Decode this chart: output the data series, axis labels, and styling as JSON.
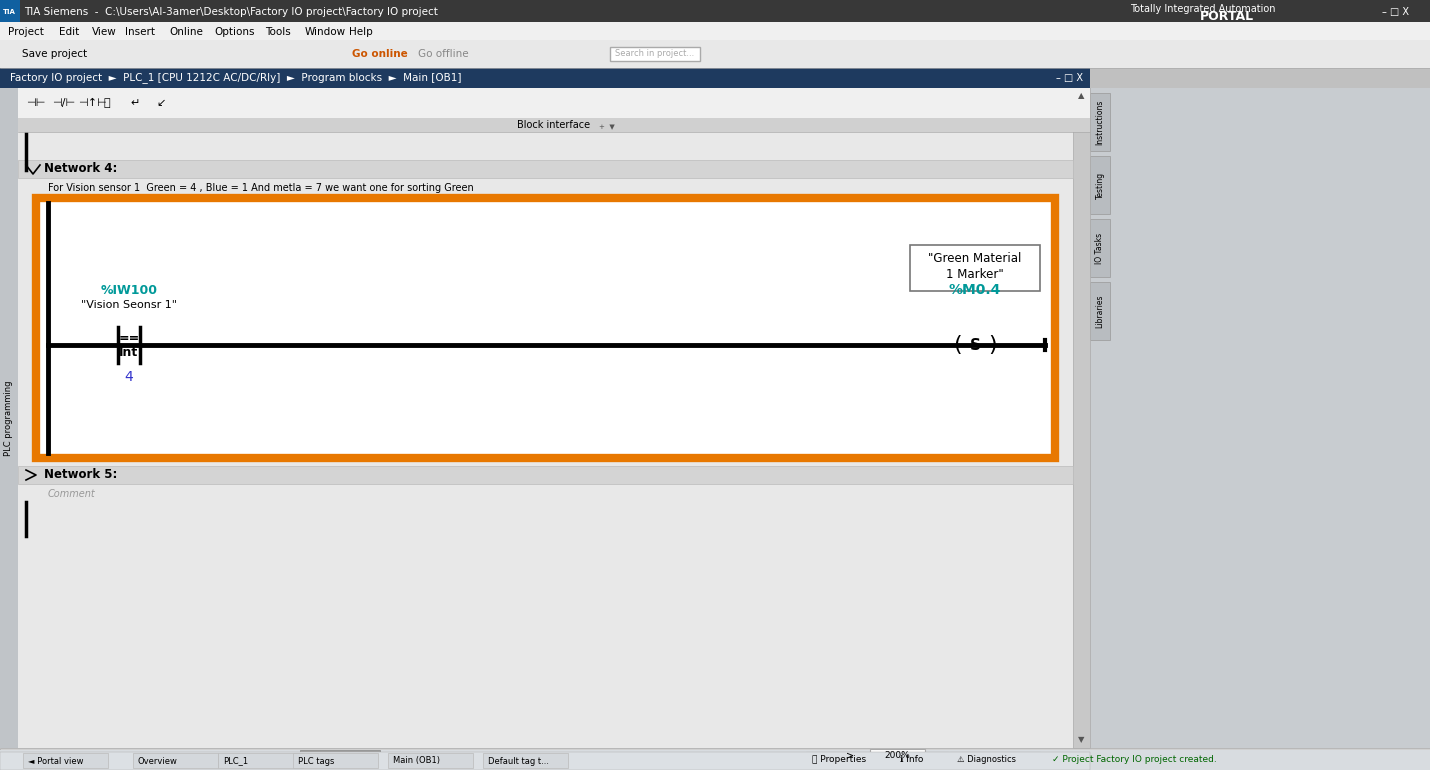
{
  "title_bar_text": "TIA Siemens  -  C:\\Users\\Al-3amer\\Desktop\\Factory IO project\\Factory IO project",
  "portal_line1": "Totally Integrated Automation",
  "portal_line2": "PORTAL",
  "breadcrumb": "Factory IO project  ►  PLC_1 [CPU 1212C AC/DC/Rly]  ►  Program blocks  ►  Main [OB1]",
  "block_interface": "Block interface",
  "network4_label": "Network 4:",
  "network4_comment": "For Vision sensor 1  Green = 4 , Blue = 1 And metla = 7 we want one for sorting Green",
  "network5_label": "Network 5:",
  "network5_comment": "Comment",
  "iw100": "%IW100",
  "iw100_tag": "\"Vision Seonsr 1\"",
  "eq_label": "==",
  "int_label": "Int",
  "val4": "4",
  "m04": "%M0.4",
  "m04_tag1": "\"Green Material",
  "m04_tag2": "1 Marker\"",
  "coil_s": "S",
  "go_online": "Go online",
  "go_offline": "Go offline",
  "save_project": "Save project",
  "search_ph": "Search in project...",
  "zoom_pct": "200%",
  "properties": "Properties",
  "info": "Info",
  "diagnostics": "Diagnostics",
  "proj_created": "Project Factory IO project created.",
  "portal_view": "Portal view",
  "overview": "Overview",
  "plc1": "PLC_1",
  "plc_tags": "PLC tags",
  "main_ob1": "Main (OB1)",
  "def_tag": "Default tag t...",
  "plc_programming": "PLC programming",
  "side_tabs": [
    "Instructions",
    "Testing",
    "IO Tasks",
    "Libraries"
  ],
  "c_title_bg": "#383838",
  "c_title_fg": "#ffffff",
  "c_menu_bg": "#f0f0f0",
  "c_menu_fg": "#000000",
  "c_toolbar_bg": "#e8e8e8",
  "c_breadcrumb_bg": "#1e3a5f",
  "c_breadcrumb_fg": "#ffffff",
  "c_content_bg": "#e8e8e8",
  "c_network_hdr": "#d4d4d4",
  "c_white": "#ffffff",
  "c_orange": "#e87800",
  "c_cyan": "#009999",
  "c_blue_val": "#3333cc",
  "c_black": "#000000",
  "c_gray": "#888888",
  "c_right_panel": "#c8ccd0",
  "c_side_panel": "#c0c4c8",
  "c_scrollbar": "#c8c8c8",
  "c_status_bg": "#d8dce0",
  "c_taskbar_bg": "#dce0e4",
  "c_dark_gray": "#555555",
  "c_go_online": "#cc5500",
  "c_search_bg": "#ffffff",
  "c_block_iface_bg": "#d0d0d0",
  "c_toolbar2_bg": "#f0f0f0",
  "c_green_msg": "#006600"
}
